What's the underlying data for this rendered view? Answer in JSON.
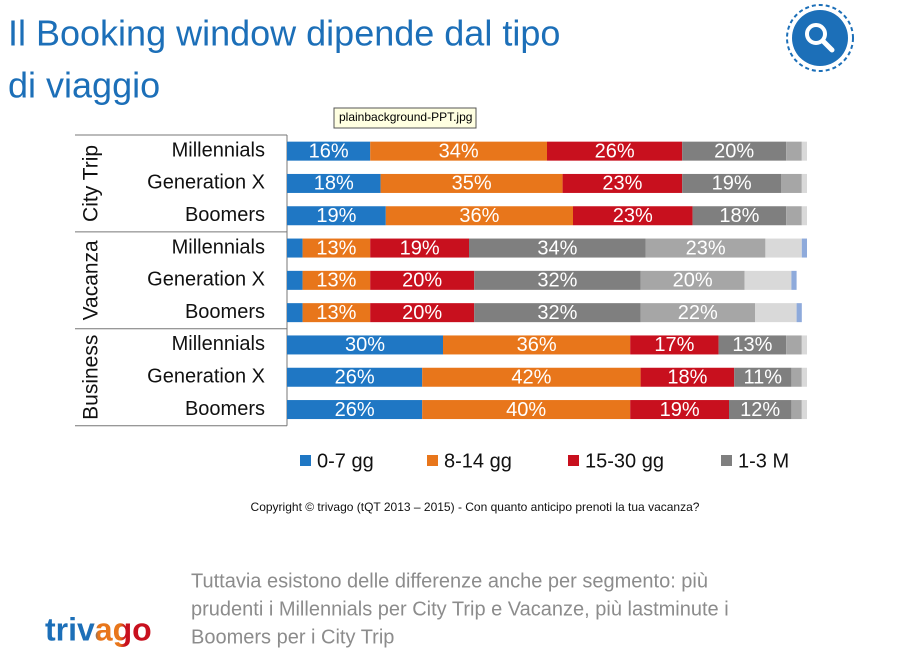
{
  "header": {
    "title": [
      "Il Booking window dipende dal tipo",
      "di viaggio"
    ],
    "tooltip": "plainbackground-PPT.jpg"
  },
  "chart_data": {
    "type": "stacked_bar_horizontal",
    "groups": [
      "City Trip",
      "Vacanza",
      "Business"
    ],
    "categories": [
      "Millennials",
      "Generation X",
      "Boomers",
      "Millennials",
      "Generation X",
      "Boomers",
      "Millennials",
      "Generation X",
      "Boomers"
    ],
    "xlim": [
      0,
      100
    ],
    "legend": "bottom",
    "series": [
      {
        "name": "0-7 gg",
        "color": "#1f77c4",
        "values": [
          16,
          18,
          19,
          3,
          3,
          3,
          30,
          26,
          26
        ],
        "value_labels": [
          "16%",
          "18%",
          "19%",
          null,
          null,
          null,
          "30%",
          "26%",
          "26%"
        ]
      },
      {
        "name": "8-14 gg",
        "color": "#e8761b",
        "values": [
          34,
          35,
          36,
          13,
          13,
          13,
          36,
          42,
          40
        ],
        "value_labels": [
          "34%",
          "35%",
          "36%",
          "13%",
          "13%",
          "13%",
          "36%",
          "42%",
          "40%"
        ]
      },
      {
        "name": "15-30 gg",
        "color": "#c8101e",
        "values": [
          26,
          23,
          23,
          19,
          20,
          20,
          17,
          18,
          19
        ],
        "value_labels": [
          "26%",
          "23%",
          "23%",
          "19%",
          "20%",
          "20%",
          "17%",
          "18%",
          "19%"
        ]
      },
      {
        "name": "1-3 M",
        "color": "#7f7f7f",
        "values": [
          20,
          19,
          18,
          34,
          32,
          32,
          13,
          11,
          12
        ],
        "value_labels": [
          "20%",
          "19%",
          "18%",
          "34%",
          "32%",
          "32%",
          "13%",
          "11%",
          "12%"
        ]
      },
      {
        "color": "#a6a6a6",
        "values": [
          3,
          4,
          3,
          23,
          20,
          22,
          3,
          2,
          2
        ],
        "value_labels": [
          null,
          null,
          null,
          "23%",
          "20%",
          "22%",
          null,
          null,
          null
        ]
      },
      {
        "color": "#d9d9d9",
        "values": [
          1,
          1,
          1,
          7,
          9,
          8,
          1,
          1,
          1
        ]
      },
      {
        "color": "#8eaadb",
        "values": [
          0,
          0,
          0,
          1,
          1,
          1,
          0,
          0,
          0
        ]
      }
    ]
  },
  "copyright": "Copyright © trivago (tQT 2013 – 2015)  - Con quanto anticipo prenoti la tua vacanza?",
  "footer": {
    "text": [
      "Tuttavia esistono delle differenze anche per segmento: più",
      "prudenti i Millennials per City Trip e Vacanze, più lastminute i",
      "Boomers per i City Trip"
    ],
    "logo": "trivago"
  }
}
